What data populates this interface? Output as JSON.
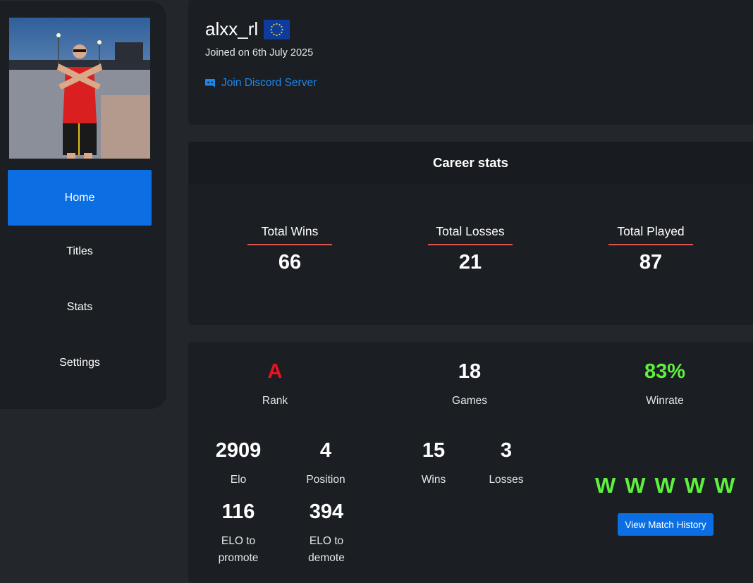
{
  "sidebar": {
    "avatar_alt": "profile photo",
    "items": [
      {
        "label": "Home",
        "active": true
      },
      {
        "label": "Titles",
        "active": false
      },
      {
        "label": "Stats",
        "active": false
      },
      {
        "label": "Settings",
        "active": false
      }
    ]
  },
  "profile": {
    "username": "alxx_rl",
    "flag_icon": "eu-flag-icon",
    "joined": "Joined on 6th July 2025",
    "discord_label": "Join Discord Server",
    "discord_icon": "discord-icon"
  },
  "career": {
    "title": "Career stats",
    "stats": [
      {
        "label": "Total Wins",
        "value": "66"
      },
      {
        "label": "Total Losses",
        "value": "21"
      },
      {
        "label": "Total Played",
        "value": "87"
      }
    ]
  },
  "season": {
    "rank": {
      "value": "A",
      "label": "Rank"
    },
    "games": {
      "value": "18",
      "label": "Games"
    },
    "winrate": {
      "value": "83%",
      "label": "Winrate"
    },
    "elo": {
      "value": "2909",
      "label": "Elo"
    },
    "position": {
      "value": "4",
      "label": "Position"
    },
    "wins": {
      "value": "15",
      "label": "Wins"
    },
    "losses": {
      "value": "3",
      "label": "Losses"
    },
    "elo_promote": {
      "value": "116",
      "label_1": "ELO to",
      "label_2": "promote"
    },
    "elo_demote": {
      "value": "394",
      "label_1": "ELO to",
      "label_2": "demote"
    },
    "streak": [
      "W",
      "W",
      "W",
      "W",
      "W"
    ],
    "history_button": "View Match History"
  },
  "colors": {
    "accent": "#0b6fe3",
    "rank": "#e8141e",
    "winrate": "#5df13d",
    "divider": "#d9534f",
    "link": "#1c86ee"
  }
}
